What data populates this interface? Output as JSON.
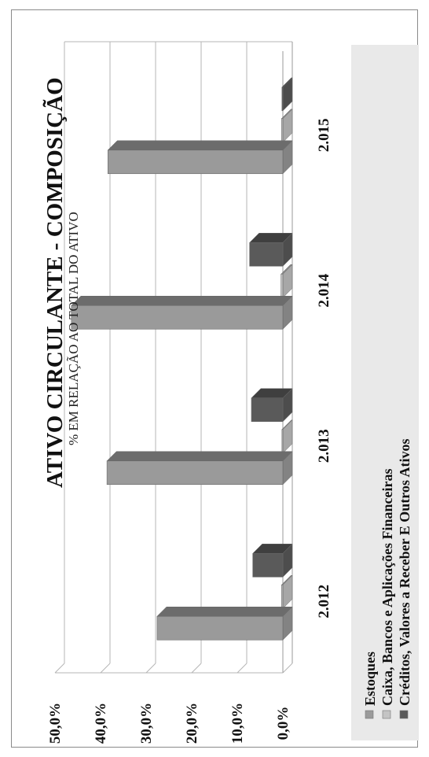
{
  "chart_data": {
    "type": "bar",
    "orientation": "rotated-90-ccw-3d",
    "title": "ATIVO CIRCULANTE - COMPOSIÇÃO",
    "subtitle": "% EM RELAÇÃO AO TOTAL DO ATIVO",
    "categories": [
      "2.012",
      "2.013",
      "2.014",
      "2.015"
    ],
    "ylim": [
      0,
      50
    ],
    "yticks": [
      "0,0%",
      "10,0%",
      "20,0%",
      "30,0%",
      "40,0%",
      "50,0%"
    ],
    "grid": true,
    "legend_position": "bottom",
    "series": [
      {
        "name": "Estoques",
        "values": [
          27.6,
          38.6,
          46.4,
          38.4
        ],
        "color": "#9a9a9a"
      },
      {
        "name": "Caixa, Bancos e Aplicações Financeiras",
        "values": [
          0.3,
          0.2,
          0.4,
          0.3
        ],
        "color": "#c4c4c4"
      },
      {
        "name": "Créditos, Valores a Receber E Outros Ativos",
        "values": [
          6.6,
          6.9,
          7.3,
          0.2
        ],
        "color": "#5a5a5a"
      }
    ]
  }
}
